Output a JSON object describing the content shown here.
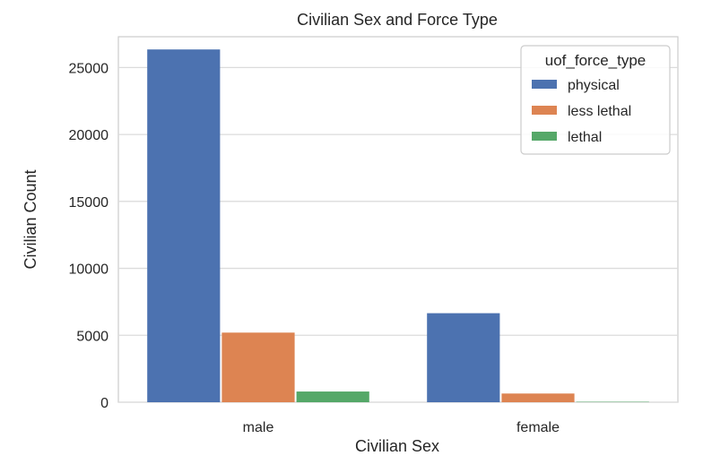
{
  "chart_data": {
    "type": "bar",
    "title": "Civilian Sex and Force Type",
    "xlabel": "Civilian Sex",
    "ylabel": "Civilian Count",
    "categories": [
      "male",
      "female"
    ],
    "series": [
      {
        "name": "physical",
        "values": [
          26350,
          6650
        ],
        "color": "#4c72b0"
      },
      {
        "name": "less lethal",
        "values": [
          5200,
          650
        ],
        "color": "#dd8452"
      },
      {
        "name": "lethal",
        "values": [
          800,
          30
        ],
        "color": "#55a868"
      }
    ],
    "ylim": [
      0,
      27300
    ],
    "yticks": [
      0,
      5000,
      10000,
      15000,
      20000,
      25000
    ],
    "ytick_labels": [
      "0",
      "5000",
      "10000",
      "15000",
      "20000",
      "25000"
    ],
    "grid": true,
    "legend": {
      "title": "uof_force_type",
      "placement": "top-right"
    }
  }
}
